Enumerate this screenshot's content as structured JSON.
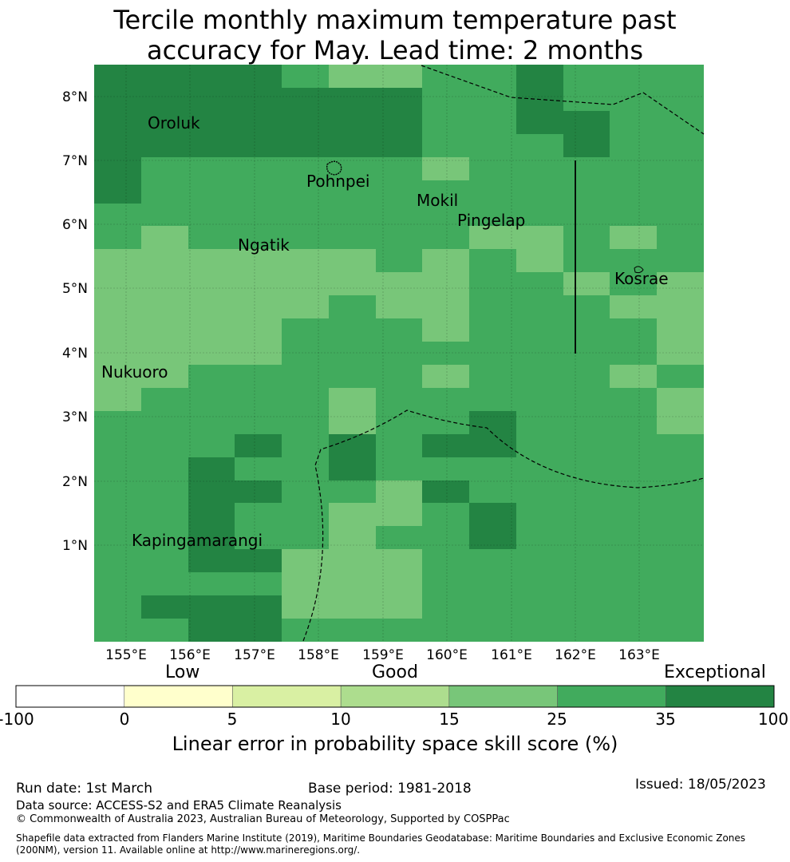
{
  "title": {
    "line1": "Tercile monthly maximum temperature past",
    "line2": "accuracy for May. Lead time: 2 months"
  },
  "map": {
    "lat_labels": [
      "8°N",
      "7°N",
      "6°N",
      "5°N",
      "4°N",
      "3°N",
      "2°N",
      "1°N"
    ],
    "lon_labels": [
      "155°E",
      "156°E",
      "157°E",
      "158°E",
      "159°E",
      "160°E",
      "161°E",
      "162°E",
      "163°E"
    ],
    "places": [
      {
        "name": "Oroluk"
      },
      {
        "name": "Pohnpei"
      },
      {
        "name": "Mokil"
      },
      {
        "name": "Pingelap"
      },
      {
        "name": "Ngatik"
      },
      {
        "name": "Kosrae"
      },
      {
        "name": "Nukuoro"
      },
      {
        "name": "Kapingamarangi"
      }
    ],
    "grid_rows": [
      "7666544556555",
      "7777777556555",
      "6666666556655",
      "7666666555755",
      "7555555455555",
      "6555555555555",
      "5555555555555",
      "5455555544545",
      "4444445454555",
      "4444444455454",
      "4444454455544",
      "4444555455554",
      "4444555555554",
      "4455555455545",
      "4555545555554",
      "5555545565554",
      "5556565765555",
      "5575575555555",
      "5566554655555",
      "5565544565555",
      "5565545575555",
      "5577444555555",
      "5555444555555",
      "5666444555555",
      "5566555555555"
    ],
    "colors": {
      "c4": "#78c679",
      "c5": "#41ab5d",
      "c6": "#238443",
      "c7": "#238443"
    }
  },
  "scale_words": {
    "low": "Low",
    "good": "Good",
    "exceptional": "Exceptional"
  },
  "colorbar": {
    "ticks": [
      "-100",
      "0",
      "5",
      "10",
      "15",
      "25",
      "35",
      "100"
    ],
    "colors": [
      "#ffffff",
      "#ffffcc",
      "#d9f0a3",
      "#addd8e",
      "#78c679",
      "#41ab5d",
      "#238443"
    ],
    "label": "Linear error in probability space skill score (%)"
  },
  "footer": {
    "run_date": "Run date: 1st March",
    "base_period": "Base period: 1981-2018",
    "issued": "Issued: 18/05/2023",
    "data_source": "Data source: ACCESS-S2 and ERA5 Climate Reanalysis",
    "copyright": "© Commonwealth of Australia 2023, Australian Bureau of Meteorology, Supported by COSPPac",
    "shapefile_line1": "Shapefile data extracted from Flanders Marine Institute (2019), Maritime Boundaries Geodatabase: Maritime Boundaries and Exclusive Economic Zones",
    "shapefile_line2": "(200NM), version 11. Available online at http://www.marineregions.org/."
  }
}
